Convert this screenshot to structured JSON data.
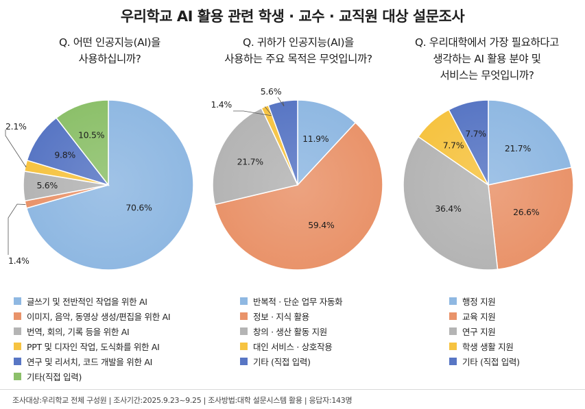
{
  "title": "우리학교 AI 활용 관련 학생 · 교수 · 교직원 대상 설문조사",
  "colors": {
    "blue_light": "#8fb8e2",
    "orange": "#e9936a",
    "gray": "#b4b4b4",
    "yellow": "#f6c341",
    "navy": "#5876c4",
    "green": "#8cc06a"
  },
  "chart_data": [
    {
      "type": "pie",
      "question": "Q. 어떤 인공지능(AI)을\n사용하십니까?",
      "categories": [
        "글쓰기 및 전반적인 작업을 위한 AI",
        "이미지, 음악, 동영상 생성/편집을 위한 AI",
        "번역, 회의, 기록 등을 위한 AI",
        "PPT 및 디자인 작업, 도식화를 위한 AI",
        "연구 및 리서치, 코드 개발을 위한 AI",
        "기타(직접 입력)"
      ],
      "values": [
        70.6,
        1.4,
        5.6,
        2.1,
        9.8,
        10.5
      ],
      "labels": [
        "70.6%",
        "1.4%",
        "5.6%",
        "2.1%",
        "9.8%",
        "10.5%"
      ],
      "colors": [
        "#8fb8e2",
        "#e9936a",
        "#b4b4b4",
        "#f6c341",
        "#5876c4",
        "#8cc06a"
      ]
    },
    {
      "type": "pie",
      "question": "Q. 귀하가 인공지능(AI)을\n사용하는 주요 목적은 무엇입니까?",
      "categories": [
        "반복적 · 단순 업무 자동화",
        "정보 · 지식 활용",
        "창의 · 생산 활동 지원",
        "대인 서비스 · 상호작용",
        "기타 (직접 입력)"
      ],
      "values": [
        11.9,
        59.4,
        21.7,
        1.4,
        5.6
      ],
      "labels": [
        "11.9%",
        "59.4%",
        "21.7%",
        "1.4%",
        "5.6%"
      ],
      "colors": [
        "#8fb8e2",
        "#e9936a",
        "#b4b4b4",
        "#f6c341",
        "#5876c4"
      ]
    },
    {
      "type": "pie",
      "question": "Q. 우리대학에서 가장 필요하다고\n생각하는 AI 활용 분야 및\n서비스는 무엇입니까?",
      "categories": [
        "행정 지원",
        "교육 지원",
        "연구 지원",
        "학생 생활 지원",
        "기타 (직접 입력)"
      ],
      "values": [
        21.7,
        26.6,
        36.4,
        7.7,
        7.7
      ],
      "labels": [
        "21.7%",
        "26.6%",
        "36.4%",
        "7.7%",
        "7.7%"
      ],
      "colors": [
        "#8fb8e2",
        "#e9936a",
        "#b4b4b4",
        "#f6c341",
        "#5876c4"
      ]
    }
  ],
  "footer": "조사대상:우리학교 전체 구성원  |  조사기간:2025.9.23~9.25  |  조사방법:대학 설문시스템 활용  |  응답자:143명"
}
